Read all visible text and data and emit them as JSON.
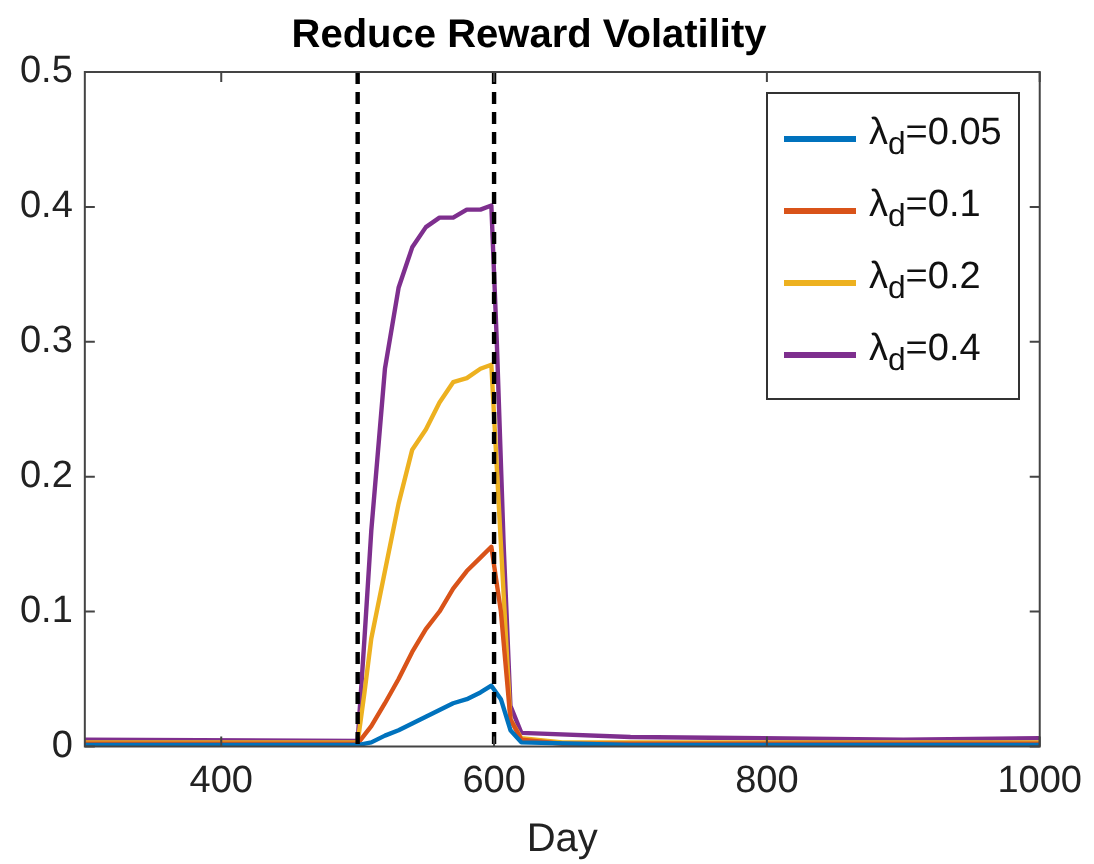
{
  "chart_data": {
    "type": "line",
    "title": "Reduce Reward Volatility",
    "xlabel": "Day",
    "xlim": [
      300,
      1000
    ],
    "xticks": [
      400,
      600,
      800,
      1000
    ],
    "ylim": [
      0,
      0.5
    ],
    "yticks": [
      0,
      0.1,
      0.2,
      0.3,
      0.4,
      0.5
    ],
    "grid": false,
    "legend": "top right",
    "marker": "none",
    "line_style": "solid",
    "ref_lines": [
      {
        "axis": "x",
        "value": 500,
        "color": "#000000",
        "line_style": "dashed"
      },
      {
        "axis": "x",
        "value": 600,
        "color": "#000000",
        "line_style": "dashed"
      }
    ],
    "series": [
      {
        "name": "λ$_{d}$=0.05",
        "color": "#0072bd",
        "x": [
          300,
          500,
          510,
          520,
          530,
          540,
          550,
          560,
          570,
          580,
          590,
          598,
          605,
          612,
          620,
          700,
          1000
        ],
        "values": [
          0.001,
          0.001,
          0.003,
          0.008,
          0.012,
          0.017,
          0.022,
          0.027,
          0.032,
          0.035,
          0.04,
          0.045,
          0.035,
          0.012,
          0.003,
          0.001,
          0.001
        ]
      },
      {
        "name": "λ$_{d}$=0.1",
        "color": "#d95319",
        "x": [
          300,
          500,
          510,
          520,
          530,
          540,
          550,
          560,
          570,
          580,
          590,
          598,
          605,
          612,
          620,
          650,
          1000
        ],
        "values": [
          0.002,
          0.002,
          0.015,
          0.032,
          0.05,
          0.07,
          0.087,
          0.1,
          0.117,
          0.13,
          0.14,
          0.148,
          0.1,
          0.02,
          0.005,
          0.002,
          0.002
        ]
      },
      {
        "name": "λ$_{d}$=0.2",
        "color": "#edb120",
        "x": [
          300,
          500,
          505,
          510,
          520,
          530,
          540,
          550,
          560,
          570,
          580,
          590,
          598,
          605,
          612,
          620,
          650,
          1000
        ],
        "values": [
          0.003,
          0.003,
          0.04,
          0.08,
          0.13,
          0.18,
          0.22,
          0.235,
          0.255,
          0.27,
          0.273,
          0.28,
          0.283,
          0.15,
          0.02,
          0.006,
          0.003,
          0.003
        ]
      },
      {
        "name": "λ$_{d}$=0.4",
        "color": "#7e2f8e",
        "x": [
          300,
          500,
          505,
          510,
          520,
          530,
          540,
          550,
          560,
          570,
          580,
          590,
          598,
          602,
          607,
          612,
          620,
          700,
          900,
          1000
        ],
        "values": [
          0.005,
          0.004,
          0.08,
          0.16,
          0.28,
          0.34,
          0.37,
          0.385,
          0.392,
          0.392,
          0.398,
          0.398,
          0.401,
          0.3,
          0.15,
          0.03,
          0.01,
          0.007,
          0.005,
          0.006
        ]
      }
    ]
  }
}
